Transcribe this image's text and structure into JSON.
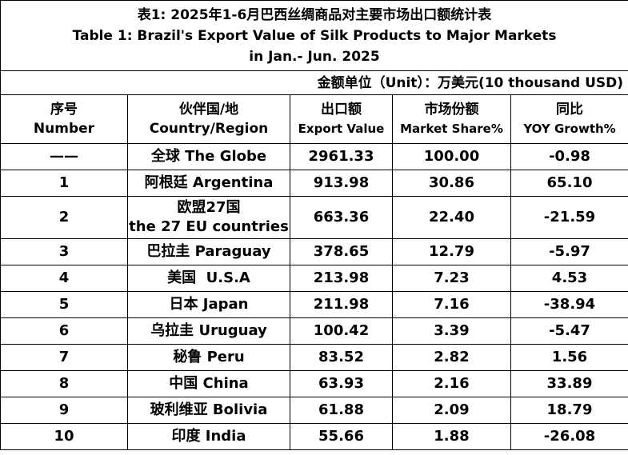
{
  "title": {
    "zh": "表1: 2025年1-6月巴西丝绸商品对主要市场出口额统计表",
    "en_line1": "Table 1: Brazil's Export Value of Silk Products to Major Markets",
    "en_line2": "in Jan.- Jun. 2025"
  },
  "unit": "金额单位（Unit）：万美元(10 thousand USD)",
  "headers": [
    {
      "zh": "序号",
      "en": "Number"
    },
    {
      "zh": "伙伴国/地",
      "en": "Country/Region"
    },
    {
      "zh": "出口额",
      "en": "Export Value"
    },
    {
      "zh": "市场份额",
      "en": "Market Share%"
    },
    {
      "zh": "同比",
      "en": "YOY Growth%"
    }
  ],
  "rows": [
    {
      "no": "——",
      "country": "全球 The Globe",
      "value": "2961.33",
      "share": "100.00",
      "yoy": "-0.98"
    },
    {
      "no": "1",
      "country": "阿根廷 Argentina",
      "value": "913.98",
      "share": "30.86",
      "yoy": "65.10"
    },
    {
      "no": "2",
      "country_l1": "欧盟27国",
      "country_l2": "the 27 EU countries",
      "value": "663.36",
      "share": "22.40",
      "yoy": "-21.59"
    },
    {
      "no": "3",
      "country": "巴拉圭 Paraguay",
      "value": "378.65",
      "share": "12.79",
      "yoy": "-5.97"
    },
    {
      "no": "4",
      "country": "美国  U.S.A",
      "value": "213.98",
      "share": "7.23",
      "yoy": "4.53"
    },
    {
      "no": "5",
      "country": "日本 Japan",
      "value": "211.98",
      "share": "7.16",
      "yoy": "-38.94"
    },
    {
      "no": "6",
      "country": "乌拉圭 Uruguay",
      "value": "100.42",
      "share": "3.39",
      "yoy": "-5.47"
    },
    {
      "no": "7",
      "country": "秘鲁 Peru",
      "value": "83.52",
      "share": "2.82",
      "yoy": "1.56"
    },
    {
      "no": "8",
      "country": "中国 China",
      "value": "63.93",
      "share": "2.16",
      "yoy": "33.89"
    },
    {
      "no": "9",
      "country": "玻利维亚 Bolivia",
      "value": "61.88",
      "share": "2.09",
      "yoy": "18.79"
    },
    {
      "no": "10",
      "country": "印度 India",
      "value": "55.66",
      "share": "1.88",
      "yoy": "-26.08"
    }
  ]
}
